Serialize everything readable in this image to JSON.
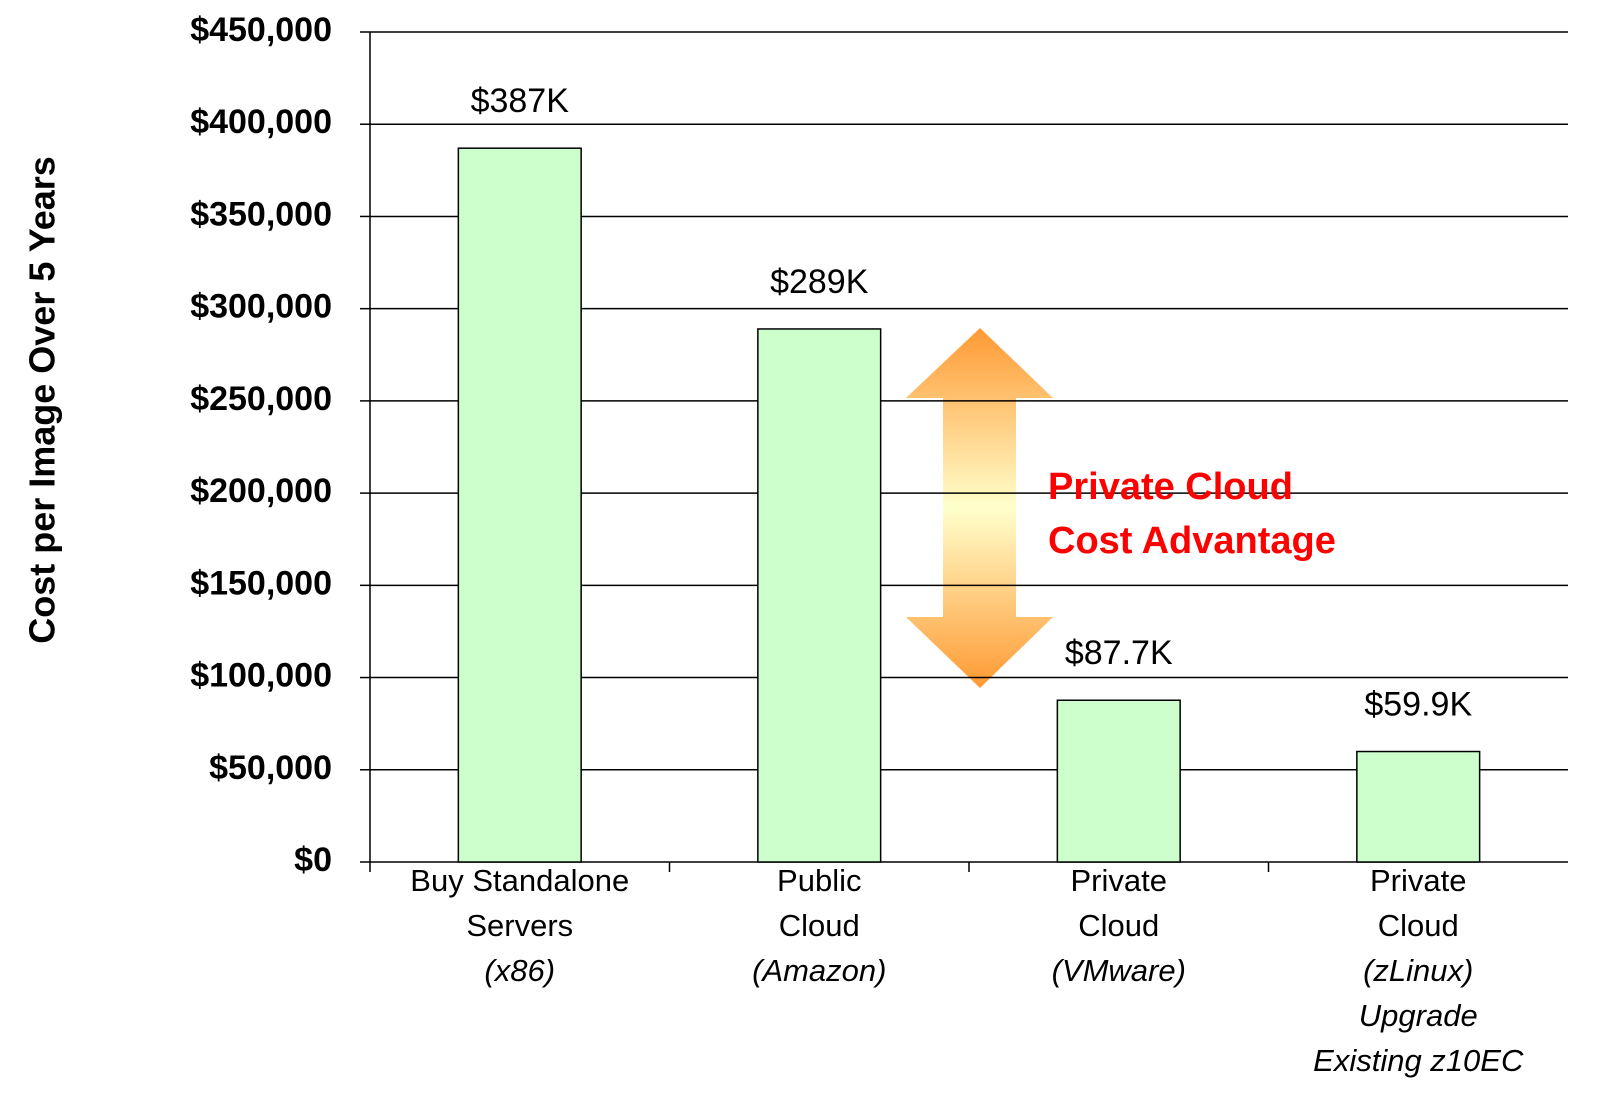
{
  "chart_data": {
    "type": "bar",
    "y_axis_label": "Cost per Image Over 5 Years",
    "categories": [
      [
        "Buy Standalone",
        "Servers"
      ],
      [
        "Public",
        "Cloud"
      ],
      [
        "Private",
        "Cloud"
      ],
      [
        "Private",
        "Cloud"
      ]
    ],
    "category_notes": [
      [
        "(x86)"
      ],
      [
        "(Amazon)"
      ],
      [
        "(VMware)"
      ],
      [
        "(zLinux)",
        "Upgrade",
        "Existing z10EC"
      ]
    ],
    "values": [
      387000,
      289000,
      87700,
      59900
    ],
    "value_labels": [
      "$387K",
      "$289K",
      "$87.7K",
      "$59.9K"
    ],
    "color": "#ccffcc",
    "ylim": [
      0,
      450000
    ],
    "yticks": [
      {
        "value": 0,
        "label": "$0"
      },
      {
        "value": 50000,
        "label": "$50,000"
      },
      {
        "value": 100000,
        "label": "$100,000"
      },
      {
        "value": 150000,
        "label": "$150,000"
      },
      {
        "value": 200000,
        "label": "$200,000"
      },
      {
        "value": 250000,
        "label": "$250,000"
      },
      {
        "value": 300000,
        "label": "$300,000"
      },
      {
        "value": 350000,
        "label": "$350,000"
      },
      {
        "value": 400000,
        "label": "$400,000"
      },
      {
        "value": 450000,
        "label": "$450,000"
      }
    ],
    "grid": true,
    "annotation": [
      "Private Cloud",
      "Cost Advantage"
    ]
  }
}
